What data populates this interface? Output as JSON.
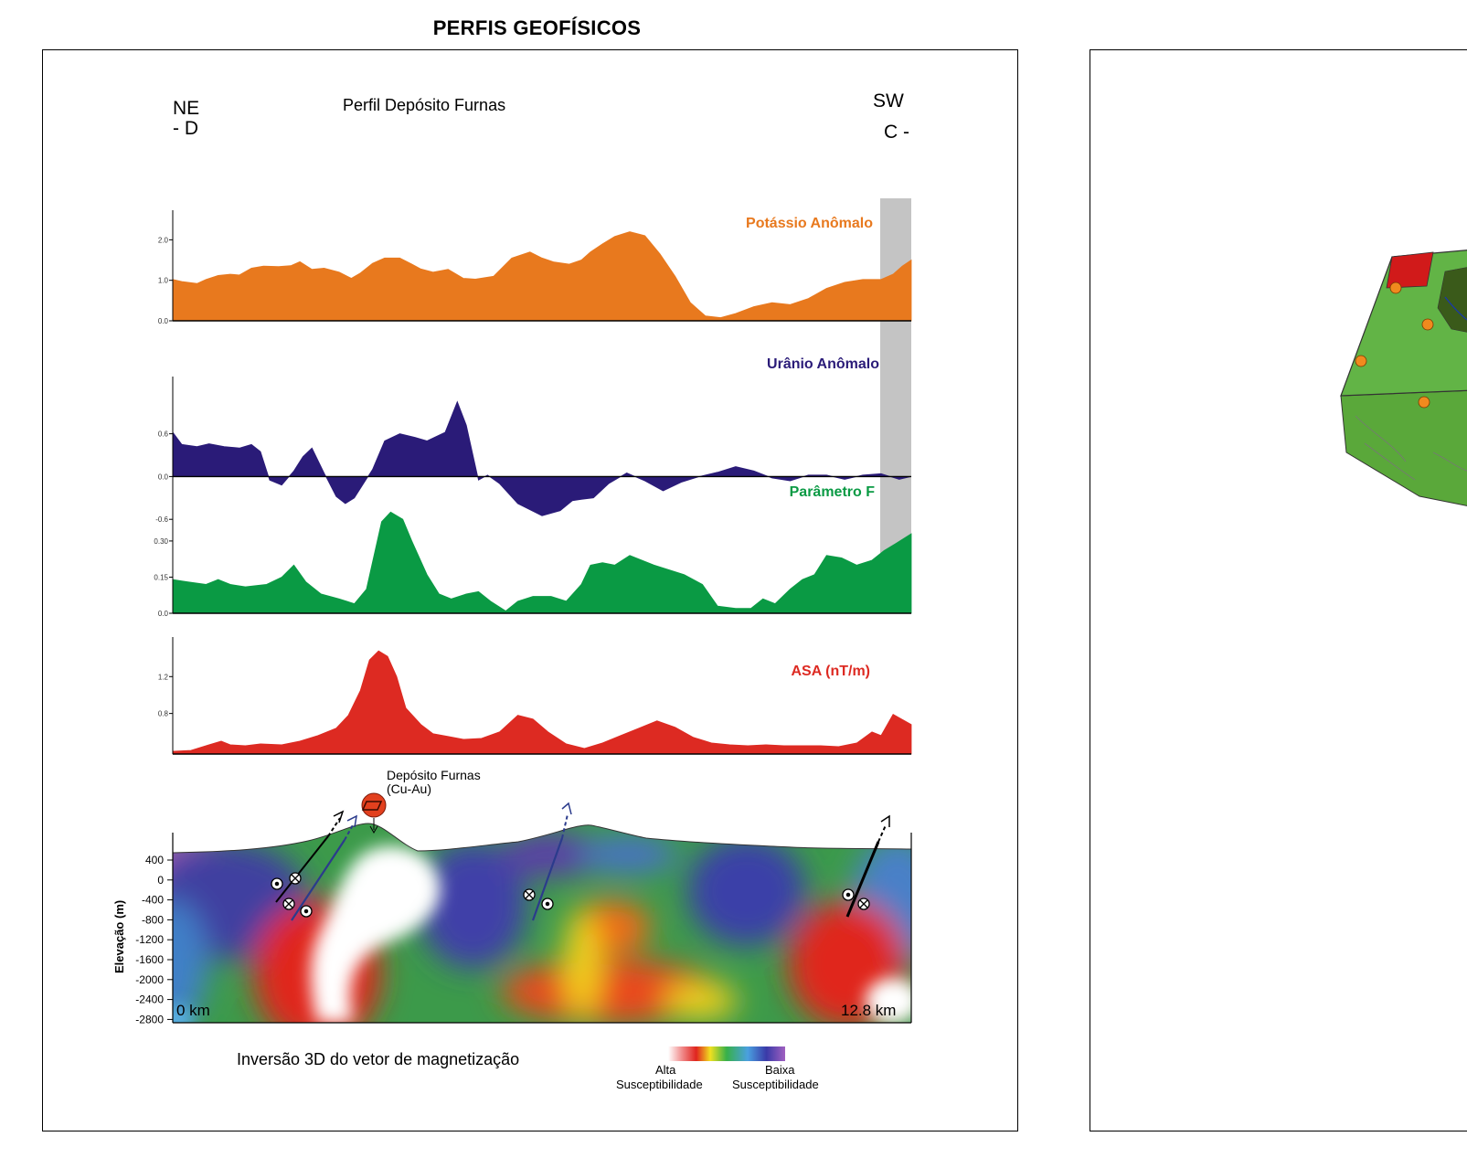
{
  "page_title": "PERFIS GEOFÍSICOS",
  "profile": {
    "title": "Perfil Depósito Furnas",
    "left_dir": "NE",
    "left_point": "- D",
    "right_dir": "SW",
    "right_point": "C -"
  },
  "colors": {
    "potassium": "#e8791e",
    "uranium": "#2a1b78",
    "fparam": "#0a9a44",
    "asa": "#dd2a22",
    "nodata": "#c4c4c4"
  },
  "chart_data": [
    {
      "type": "area",
      "title": "Potássio Anômalo",
      "yticks": [
        "0.0",
        "1.0",
        "2.0"
      ],
      "ylim": [
        0,
        2.55
      ],
      "x_km": [
        0,
        0.15,
        0.4,
        0.55,
        0.75,
        0.95,
        1.1,
        1.3,
        1.5,
        1.75,
        1.95,
        2.1,
        2.3,
        2.5,
        2.75,
        2.95,
        3.1,
        3.3,
        3.5,
        3.75,
        3.95,
        4.1,
        4.3,
        4.55,
        4.8,
        5.0,
        5.3,
        5.6,
        5.9,
        6.1,
        6.3,
        6.55,
        6.75,
        6.9,
        7.1,
        7.3,
        7.55,
        7.8,
        8.05,
        8.3,
        8.55,
        8.8,
        9.05,
        9.3,
        9.6,
        9.9,
        10.2,
        10.5,
        10.8,
        11.1,
        11.4,
        11.7,
        11.9,
        12.05,
        12.2
      ],
      "values": [
        1.02,
        0.97,
        0.92,
        1.02,
        1.12,
        1.15,
        1.13,
        1.3,
        1.35,
        1.34,
        1.36,
        1.46,
        1.27,
        1.3,
        1.2,
        1.05,
        1.18,
        1.42,
        1.55,
        1.55,
        1.4,
        1.28,
        1.2,
        1.27,
        1.05,
        1.03,
        1.1,
        1.55,
        1.7,
        1.55,
        1.45,
        1.4,
        1.5,
        1.7,
        1.9,
        2.08,
        2.2,
        2.1,
        1.65,
        1.1,
        0.45,
        0.12,
        0.08,
        0.18,
        0.35,
        0.45,
        0.4,
        0.55,
        0.8,
        0.95,
        1.02,
        1.02,
        1.15,
        1.35,
        1.5
      ]
    },
    {
      "type": "area",
      "title": "Urânio Anômalo",
      "yticks": [
        "-0.6",
        "0.0",
        "0.6"
      ],
      "ylim": [
        -0.7,
        1.3
      ],
      "x_km": [
        0,
        0.15,
        0.4,
        0.6,
        0.85,
        1.1,
        1.3,
        1.45,
        1.6,
        1.8,
        2.0,
        2.15,
        2.3,
        2.5,
        2.7,
        2.85,
        3.0,
        3.3,
        3.5,
        3.75,
        4.0,
        4.2,
        4.5,
        4.7,
        4.85,
        5.05,
        5.2,
        5.4,
        5.7,
        6.1,
        6.4,
        6.6,
        6.75,
        6.95,
        7.2,
        7.5,
        7.8,
        8.1,
        8.4,
        8.7,
        9.0,
        9.3,
        9.6,
        9.9,
        10.2,
        10.5,
        10.8,
        11.1,
        11.4,
        11.7,
        12.0,
        12.2
      ],
      "values": [
        0.62,
        0.45,
        0.42,
        0.46,
        0.42,
        0.4,
        0.45,
        0.35,
        -0.05,
        -0.12,
        0.08,
        0.28,
        0.4,
        0.05,
        -0.28,
        -0.38,
        -0.3,
        0.1,
        0.5,
        0.6,
        0.55,
        0.5,
        0.62,
        1.05,
        0.72,
        -0.05,
        0.02,
        -0.1,
        -0.38,
        -0.55,
        -0.48,
        -0.34,
        -0.32,
        -0.3,
        -0.1,
        0.05,
        -0.06,
        -0.2,
        -0.08,
        0.0,
        0.06,
        0.14,
        0.08,
        -0.02,
        -0.06,
        0.02,
        0.02,
        -0.04,
        0.02,
        0.04,
        -0.04,
        0.0
      ]
    },
    {
      "type": "area",
      "title": "Parâmetro F",
      "yticks": [
        "0.0",
        "0.15",
        "0.30"
      ],
      "ylim": [
        0,
        0.44
      ],
      "x_km": [
        0,
        0.25,
        0.55,
        0.75,
        0.95,
        1.2,
        1.55,
        1.8,
        2.0,
        2.2,
        2.45,
        2.75,
        3.0,
        3.2,
        3.45,
        3.6,
        3.8,
        3.95,
        4.2,
        4.4,
        4.6,
        4.85,
        5.05,
        5.25,
        5.5,
        5.7,
        5.95,
        6.25,
        6.5,
        6.75,
        6.9,
        7.1,
        7.3,
        7.55,
        7.75,
        7.95,
        8.2,
        8.45,
        8.75,
        9.0,
        9.3,
        9.55,
        9.75,
        9.95,
        10.2,
        10.4,
        10.6,
        10.8,
        11.05,
        11.3,
        11.55,
        11.75,
        11.95,
        12.2
      ],
      "values": [
        0.14,
        0.13,
        0.12,
        0.14,
        0.12,
        0.11,
        0.12,
        0.15,
        0.2,
        0.13,
        0.08,
        0.06,
        0.04,
        0.1,
        0.38,
        0.42,
        0.39,
        0.3,
        0.16,
        0.08,
        0.06,
        0.08,
        0.09,
        0.05,
        0.01,
        0.05,
        0.07,
        0.07,
        0.05,
        0.12,
        0.2,
        0.21,
        0.2,
        0.24,
        0.22,
        0.2,
        0.18,
        0.16,
        0.12,
        0.03,
        0.02,
        0.02,
        0.06,
        0.04,
        0.1,
        0.14,
        0.16,
        0.24,
        0.23,
        0.2,
        0.22,
        0.26,
        0.29,
        0.33
      ]
    },
    {
      "type": "area",
      "title": "ASA (nT/m)",
      "yticks": [
        "0.8",
        "1.2"
      ],
      "ylim": [
        0.36,
        1.55
      ],
      "x_km": [
        0,
        0.3,
        0.6,
        0.8,
        0.95,
        1.2,
        1.45,
        1.8,
        2.1,
        2.4,
        2.7,
        2.9,
        3.1,
        3.25,
        3.4,
        3.55,
        3.7,
        3.85,
        4.1,
        4.3,
        4.55,
        4.8,
        5.1,
        5.4,
        5.7,
        5.95,
        6.2,
        6.5,
        6.8,
        7.1,
        7.4,
        7.7,
        8.0,
        8.3,
        8.6,
        8.9,
        9.2,
        9.5,
        9.8,
        10.1,
        10.4,
        10.7,
        11.0,
        11.3,
        11.55,
        11.7,
        11.9,
        12.2
      ],
      "values": [
        0.39,
        0.4,
        0.46,
        0.5,
        0.46,
        0.45,
        0.47,
        0.46,
        0.5,
        0.56,
        0.64,
        0.78,
        1.05,
        1.38,
        1.48,
        1.42,
        1.2,
        0.86,
        0.68,
        0.58,
        0.55,
        0.52,
        0.53,
        0.6,
        0.78,
        0.74,
        0.6,
        0.47,
        0.42,
        0.48,
        0.56,
        0.64,
        0.72,
        0.65,
        0.54,
        0.48,
        0.46,
        0.45,
        0.46,
        0.45,
        0.45,
        0.45,
        0.44,
        0.48,
        0.6,
        0.56,
        0.79,
        0.68
      ]
    }
  ],
  "section": {
    "deposit_label_1": "Depósito Furnas",
    "deposit_label_2": "(Cu-Au)",
    "ylabel": "Elevação (m)",
    "yticks": [
      "400",
      "0",
      "-400",
      "-800",
      "-1200",
      "-1600",
      "-2000",
      "-2400",
      "-2800"
    ],
    "start_label": "0 km",
    "end_label": "12.8 km",
    "title": "Inversão 3D do vetor de magnetização",
    "legend_high_1": "Alta",
    "legend_high_2": "Susceptibilidade",
    "legend_low_1": "Baixa",
    "legend_low_2": "Susceptibilidade"
  }
}
